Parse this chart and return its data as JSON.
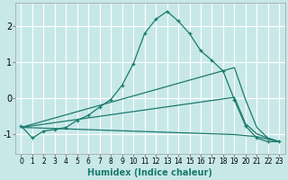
{
  "xlabel": "Humidex (Indice chaleur)",
  "bg_color": "#c8e8e8",
  "line_color": "#1a7a6e",
  "xlim": [
    -0.5,
    23.5
  ],
  "ylim": [
    -1.55,
    2.65
  ],
  "xticks": [
    0,
    1,
    2,
    3,
    4,
    5,
    6,
    7,
    8,
    9,
    10,
    11,
    12,
    13,
    14,
    15,
    16,
    17,
    18,
    19,
    20,
    21,
    22,
    23
  ],
  "yticks": [
    -1,
    0,
    1,
    2
  ],
  "main_x": [
    0,
    1,
    2,
    3,
    4,
    5,
    6,
    7,
    8,
    9,
    10,
    11,
    12,
    13,
    14,
    15,
    16,
    17,
    18,
    19,
    20,
    21,
    22,
    23
  ],
  "main_y": [
    -0.78,
    -1.12,
    -0.92,
    -0.88,
    -0.82,
    -0.62,
    -0.48,
    -0.25,
    -0.04,
    0.36,
    0.96,
    1.8,
    2.2,
    2.42,
    2.15,
    1.8,
    1.32,
    1.05,
    0.75,
    -0.05,
    -0.78,
    -1.12,
    -1.22,
    -1.22
  ],
  "line2_x": [
    0,
    19,
    20,
    21,
    22,
    23
  ],
  "line2_y": [
    -0.82,
    0.85,
    -0.05,
    -0.82,
    -1.12,
    -1.22
  ],
  "line3_x": [
    0,
    19,
    20,
    21,
    22,
    23
  ],
  "line3_y": [
    -0.82,
    0.02,
    -0.72,
    -1.0,
    -1.12,
    -1.22
  ],
  "line4_x": [
    0,
    19,
    20,
    21,
    22,
    23
  ],
  "line4_y": [
    -0.82,
    -1.02,
    -1.05,
    -1.08,
    -1.15,
    -1.22
  ]
}
